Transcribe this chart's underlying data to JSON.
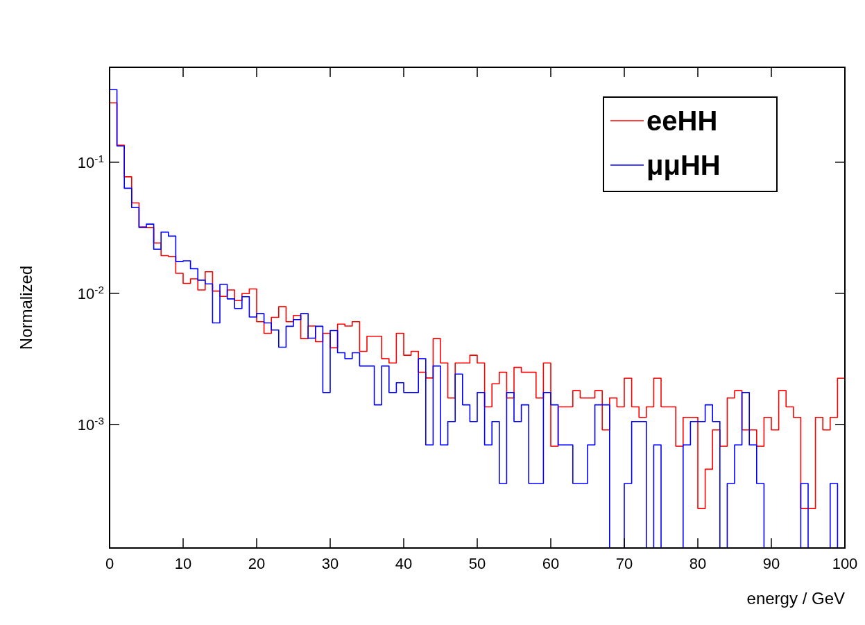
{
  "chart_data": {
    "type": "histogram",
    "xlabel": "energy / GeV",
    "ylabel": "Normalized",
    "log": "y",
    "legend": "top right",
    "grid": false,
    "bins": [
      0,
      1,
      2,
      3,
      4,
      5,
      6,
      7,
      8,
      9,
      10,
      11,
      12,
      13,
      14,
      15,
      16,
      17,
      18,
      19,
      20,
      21,
      22,
      23,
      24,
      25,
      26,
      27,
      28,
      29,
      30,
      31,
      32,
      33,
      34,
      35,
      36,
      37,
      38,
      39,
      40,
      41,
      42,
      43,
      44,
      45,
      46,
      47,
      48,
      49,
      50,
      51,
      52,
      53,
      54,
      55,
      56,
      57,
      58,
      59,
      60,
      61,
      62,
      63,
      64,
      65,
      66,
      67,
      68,
      69,
      70,
      71,
      72,
      73,
      74,
      75,
      76,
      77,
      78,
      79,
      80,
      81,
      82,
      83,
      84,
      85,
      86,
      87,
      88,
      89,
      90,
      91,
      92,
      93,
      94,
      95,
      96,
      97,
      98,
      99,
      100
    ],
    "xlim": [
      0,
      100
    ],
    "xticks": [
      0,
      10,
      20,
      30,
      40,
      50,
      60,
      70,
      80,
      90,
      100
    ],
    "ylim": [
      0.000114,
      0.53
    ],
    "yticks": [
      {
        "value": 0.001,
        "label": "10$^{-3}$"
      },
      {
        "value": 0.01,
        "label": "10$^{-2}$"
      },
      {
        "value": 0.1,
        "label": "10$^{-1}$"
      }
    ],
    "series": [
      {
        "name": "eeHH",
        "color": "#ff0000",
        "values": [
          0.284,
          0.135,
          0.0774,
          0.0489,
          0.0321,
          0.0317,
          0.0242,
          0.0194,
          0.0191,
          0.0142,
          0.0119,
          0.0129,
          0.0106,
          0.0146,
          0.0104,
          0.00948,
          0.0106,
          0.00881,
          0.00995,
          0.0108,
          0.00607,
          0.00495,
          0.00655,
          0.0079,
          0.00607,
          0.00678,
          0.00451,
          0.00563,
          0.00428,
          0.00495,
          0.00384,
          0.00582,
          0.00563,
          0.00607,
          0.00361,
          0.0047,
          0.0047,
          0.00317,
          0.00294,
          0.00495,
          0.00337,
          0.00361,
          0.0025,
          0.00226,
          0.00451,
          0.00294,
          0.00159,
          0.00294,
          0.00294,
          0.00337,
          0.00294,
          0.00136,
          0.00204,
          0.0025,
          0.00159,
          0.00272,
          0.0025,
          0.0025,
          0.00159,
          0.00294,
          0.000682,
          0.00136,
          0.00136,
          0.00181,
          0.00159,
          0.00159,
          0.00181,
          0.000908,
          0.00159,
          0.00136,
          0.00225,
          0.00136,
          0.00113,
          0.00136,
          0.00225,
          0.00136,
          0.00136,
          0.000682,
          0.00113,
          0.00113,
          0.000228,
          0.000455,
          0.000908,
          0.000682,
          0.00159,
          0.00181,
          0.000908,
          0.000908,
          0.000682,
          0.00113,
          0.000908,
          0.00181,
          0.00136,
          0.00113,
          0.000228,
          0.000228,
          0.00113,
          0.000908,
          0.00113,
          0.00225
        ]
      },
      {
        "name": "μμHH",
        "color": "#0000ff",
        "values": [
          0.358,
          0.133,
          0.0633,
          0.0451,
          0.0318,
          0.0337,
          0.0217,
          0.0293,
          0.0273,
          0.0175,
          0.0177,
          0.0154,
          0.0126,
          0.0118,
          0.00594,
          0.0117,
          0.00907,
          0.00765,
          0.00941,
          0.0066,
          0.007,
          0.00594,
          0.00525,
          0.00388,
          0.0056,
          0.0063,
          0.007,
          0.00455,
          0.0056,
          0.00175,
          0.0052,
          0.00352,
          0.00317,
          0.00352,
          0.00279,
          0.00279,
          0.00141,
          0.00279,
          0.00175,
          0.00208,
          0.00175,
          0.00175,
          0.00317,
          0.000697,
          0.00279,
          0.000697,
          0.00105,
          0.00242,
          0.00141,
          0.00105,
          0.00175,
          0.000697,
          0.00105,
          0.000354,
          0.00175,
          0.00105,
          0.00141,
          0.000354,
          0.000354,
          0.00175,
          0.00141,
          0.000697,
          0.000697,
          0.000354,
          0.000354,
          0.000697,
          0.00141,
          0.00141,
          null,
          null,
          0.000354,
          0.00105,
          0.00105,
          null,
          0.000697,
          null,
          null,
          null,
          0.000697,
          0.00105,
          0.00105,
          0.00141,
          0.00105,
          null,
          0.000354,
          0.000697,
          0.00175,
          0.000697,
          0.000354,
          null,
          null,
          null,
          null,
          null,
          0.000354,
          null,
          null,
          null,
          0.000354,
          null
        ]
      }
    ]
  }
}
